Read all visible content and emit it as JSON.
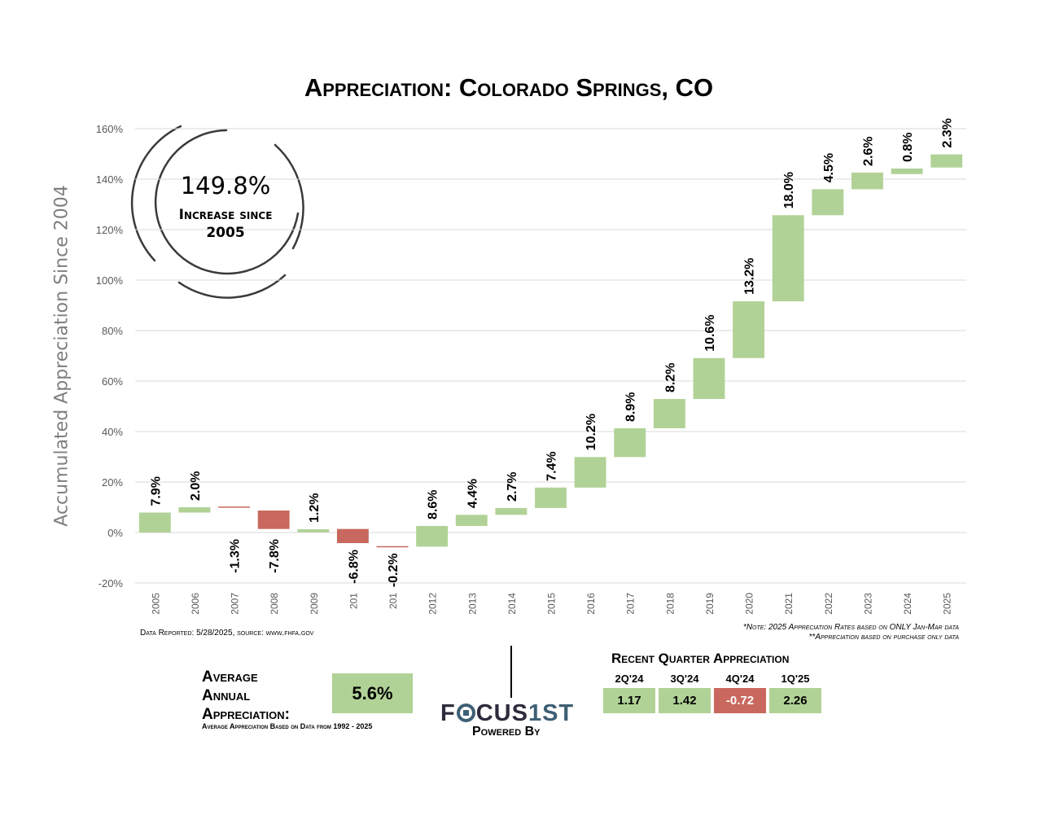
{
  "title": "Appreciation: Colorado Springs, CO",
  "ylabel": "Accumulated Appreciation Since 2004",
  "summary": {
    "increase_pct": "149.8%",
    "increase_label_1": "Increase since",
    "increase_label_2": "2005"
  },
  "footnotes": {
    "data_reported": "Data Reported: 5/28/2025, source: www.fhfa.gov",
    "note_1": "*Note: 2025 Appreciation Rates based on ONLY Jan-Mar data",
    "note_2": "**Appreciation based on purchase only data"
  },
  "average": {
    "label_1": "Average",
    "label_2": "Annual",
    "label_3": "Appreciation:",
    "value": "5.6%",
    "note": "Average Appreciation Based on Data from 1992 - 2025"
  },
  "branding": {
    "logo_left": "F",
    "logo_mid": "CUS",
    "logo_accent": "1ST",
    "powered_by": "Powered By"
  },
  "recent_quarters": {
    "title": "Recent Quarter Appreciation",
    "items": [
      {
        "label": "2Q'24",
        "value": "1.17",
        "color": "#b1d296"
      },
      {
        "label": "3Q'24",
        "value": "1.42",
        "color": "#b1d296"
      },
      {
        "label": "4Q'24",
        "value": "-0.72",
        "color": "#c9685e"
      },
      {
        "label": "1Q'25",
        "value": "2.26",
        "color": "#b1d296"
      }
    ]
  },
  "colors": {
    "positive": "#b1d296",
    "negative": "#c9685e",
    "grid": "#d9d9d9",
    "axis_text": "#595959"
  },
  "chart_data": {
    "type": "bar",
    "subtype": "waterfall",
    "categories": [
      "2005",
      "2006",
      "2007",
      "2008",
      "2009",
      "201",
      "201",
      "2012",
      "2013",
      "2014",
      "2015",
      "2016",
      "2017",
      "2018",
      "2019",
      "2020",
      "2021",
      "2022",
      "2023",
      "2024",
      "2025"
    ],
    "changes": [
      7.9,
      2.0,
      -1.3,
      -7.8,
      1.2,
      -6.8,
      -0.2,
      8.6,
      4.4,
      2.7,
      7.4,
      10.2,
      8.9,
      8.2,
      10.6,
      13.2,
      18.0,
      4.5,
      2.6,
      0.8,
      2.3
    ],
    "bar_start": [
      0,
      7.9,
      10,
      8.7,
      0.1,
      1.4,
      -5.4,
      -5.6,
      2.6,
      7.0,
      9.7,
      17.8,
      29.9,
      41.3,
      52.9,
      69.1,
      91.6,
      125.7,
      136.0,
      142.0,
      144.6
    ],
    "bar_end": [
      7.9,
      10,
      10.3,
      1.4,
      1.3,
      -4.2,
      -5.6,
      2.6,
      7.0,
      9.7,
      17.8,
      29.9,
      41.3,
      52.9,
      69.1,
      91.6,
      125.7,
      136.0,
      142.6,
      144.2,
      149.8
    ],
    "labels": [
      "7.9%",
      "2.0%",
      "-1.3%",
      "-7.8%",
      "1.2%",
      "-6.8%",
      "-0.2%",
      "8.6%",
      "4.4%",
      "2.7%",
      "7.4%",
      "10.2%",
      "8.9%",
      "8.2%",
      "10.6%",
      "13.2%",
      "18.0%",
      "4.5%",
      "2.6%",
      "0.8%",
      "2.3%"
    ],
    "yticks": [
      "160%",
      "140%",
      "120%",
      "100%",
      "80%",
      "60%",
      "40%",
      "20%",
      "0%",
      "-20%"
    ],
    "ylim": [
      -20,
      160
    ],
    "grid": true
  }
}
